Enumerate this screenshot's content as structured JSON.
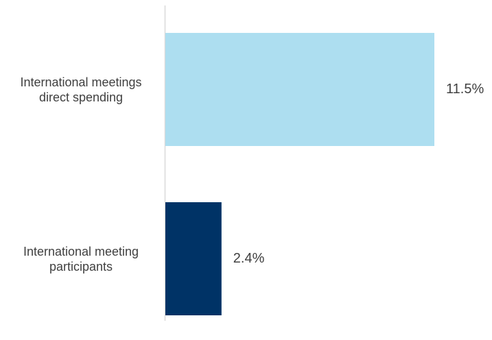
{
  "chart_data": {
    "type": "bar",
    "orientation": "horizontal",
    "categories": [
      "International meetings\ndirect spending",
      "International meeting\nparticipants"
    ],
    "values": [
      11.5,
      2.4
    ],
    "value_labels": [
      "11.5%",
      "2.4%"
    ],
    "colors": [
      "#ADDEF0",
      "#003366"
    ],
    "axis_color": "#D9D9D9",
    "title": "",
    "xlabel": "",
    "ylabel": "",
    "xlim": [
      0,
      12.9
    ],
    "grid": false,
    "legend": false
  }
}
